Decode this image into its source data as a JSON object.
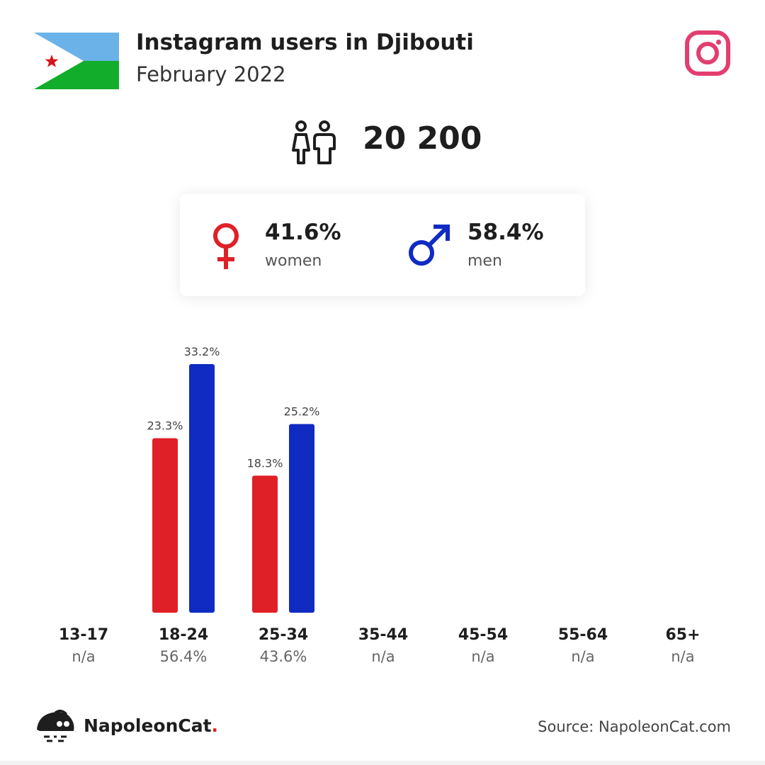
{
  "header": {
    "title": "Instagram users in Djibouti",
    "subtitle": "February 2022"
  },
  "icons": {
    "flag": "djibouti-flag-icon",
    "platform": "instagram-icon",
    "users": "people-icon",
    "female": "female-symbol-icon",
    "male": "male-symbol-icon",
    "brand": "napoleoncat-logo-icon"
  },
  "total": {
    "value": "20 200"
  },
  "gender": {
    "women": {
      "pct": "41.6%",
      "label": "women"
    },
    "men": {
      "pct": "58.4%",
      "label": "men"
    }
  },
  "colors": {
    "women": "#e02027",
    "men": "#102bc2",
    "instagram": "#e33e6f",
    "flag_blue": "#6ab2e7",
    "flag_green": "#12ad2b",
    "flag_star": "#d7141a"
  },
  "chart_data": {
    "type": "bar",
    "categories": [
      "13-17",
      "18-24",
      "25-34",
      "35-44",
      "45-54",
      "55-64",
      "65+"
    ],
    "category_shares": [
      "n/a",
      "56.4%",
      "43.6%",
      "n/a",
      "n/a",
      "n/a",
      "n/a"
    ],
    "series": [
      {
        "name": "women",
        "values": [
          null,
          23.3,
          18.3,
          null,
          null,
          null,
          null
        ],
        "labels": [
          "",
          "23.3%",
          "18.3%",
          "",
          "",
          "",
          ""
        ]
      },
      {
        "name": "men",
        "values": [
          null,
          33.2,
          25.2,
          null,
          null,
          null,
          null
        ],
        "labels": [
          "",
          "33.2%",
          "25.2%",
          "",
          "",
          "",
          ""
        ]
      }
    ],
    "ylim": [
      0,
      33.2
    ],
    "grid": false
  },
  "footer": {
    "brand": "NapoleonCat",
    "brand_dot": ".",
    "source": "Source: NapoleonCat.com"
  }
}
